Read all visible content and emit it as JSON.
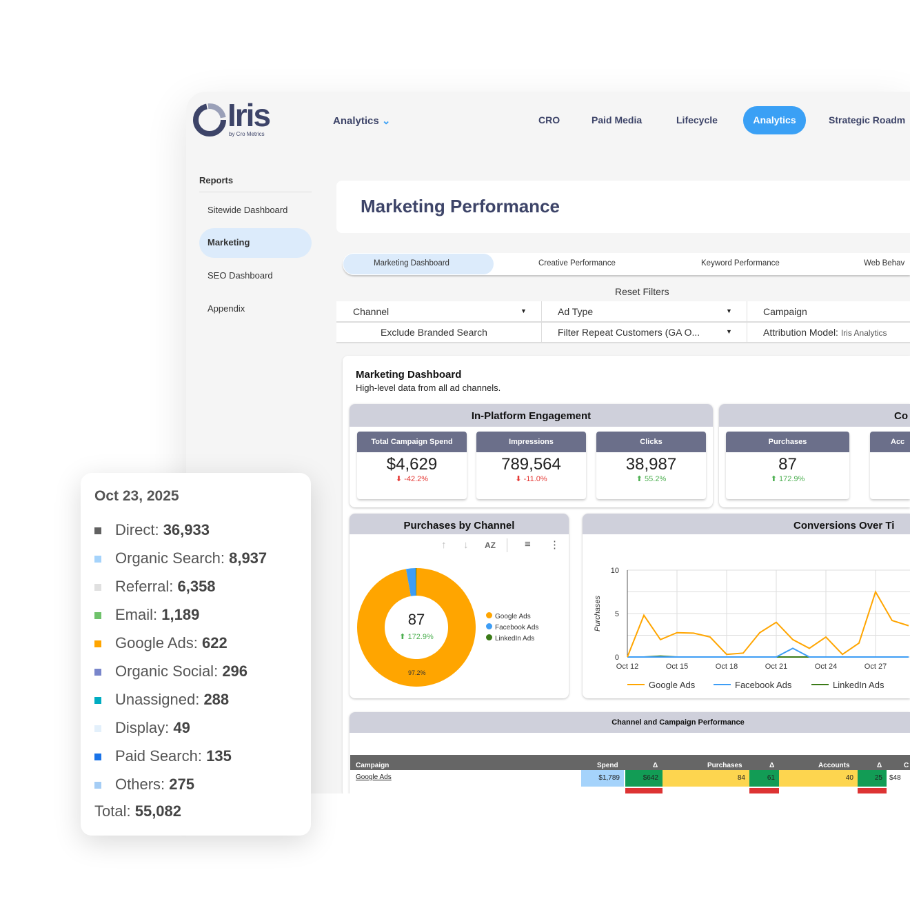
{
  "brand": {
    "logo_text": "Iris",
    "logo_sub": "by Cro Metrics"
  },
  "topnav": {
    "dropdown": "Analytics",
    "items": [
      "CRO",
      "Paid Media",
      "Lifecycle",
      "Analytics",
      "Strategic Roadm"
    ],
    "active": "Analytics"
  },
  "sidebar": {
    "heading": "Reports",
    "items": [
      "Sitewide Dashboard",
      "Marketing",
      "SEO Dashboard",
      "Appendix"
    ],
    "active": "Marketing"
  },
  "page_title": "Marketing Performance",
  "tabs": [
    "Marketing Dashboard",
    "Creative Performance",
    "Keyword Performance",
    "Web Behav"
  ],
  "filters": {
    "reset": "Reset Filters",
    "channel": "Channel",
    "ad_type": "Ad Type",
    "campaign": "Campaign",
    "exclude": "Exclude Branded Search",
    "repeat": "Filter Repeat Customers (GA O...",
    "attribution_label": "Attribution Model:",
    "attribution_value": "Iris Analytics"
  },
  "dashboard": {
    "title": "Marketing Dashboard",
    "subtitle": "High-level data from all ad channels."
  },
  "engagement": {
    "title": "In-Platform Engagement",
    "kpis": [
      {
        "label": "Total Campaign Spend",
        "value": "$4,629",
        "delta": "-42.2%",
        "dir": "down"
      },
      {
        "label": "Impressions",
        "value": "789,564",
        "delta": "-11.0%",
        "dir": "down"
      },
      {
        "label": "Clicks",
        "value": "38,987",
        "delta": "55.2%",
        "dir": "up"
      }
    ]
  },
  "conversions": {
    "title": "Co",
    "kpis": [
      {
        "label": "Purchases",
        "value": "87",
        "delta": "172.9%",
        "dir": "up"
      },
      {
        "label": "Acc"
      }
    ]
  },
  "pie": {
    "title": "Purchases by Channel",
    "center_value": "87",
    "center_delta": "172.9%",
    "slice_label": "97.2%"
  },
  "line_title": "Conversions Over Ti",
  "table": {
    "title": "Channel and Campaign Performance",
    "headers": [
      "Campaign",
      "Spend",
      "Δ",
      "Purchases",
      "Δ",
      "Accounts",
      "Δ",
      "C"
    ],
    "row": [
      "Google Ads",
      "$1,789",
      "$642",
      "84",
      "61",
      "40",
      "25",
      "$48"
    ]
  },
  "tooltip": {
    "date": "Oct 23, 2025",
    "items": [
      {
        "label": "Direct:",
        "value": "36,933",
        "color": "#616161"
      },
      {
        "label": "Organic Search:",
        "value": "8,937",
        "color": "#a5d3fb"
      },
      {
        "label": "Referral:",
        "value": "6,358",
        "color": "#e0e0e0"
      },
      {
        "label": "Email:",
        "value": "1,189",
        "color": "#6fc26b"
      },
      {
        "label": "Google Ads:",
        "value": "622",
        "color": "#ffa500"
      },
      {
        "label": "Organic Social:",
        "value": "296",
        "color": "#7986cb"
      },
      {
        "label": "Unassigned:",
        "value": "288",
        "color": "#00acc1"
      },
      {
        "label": "Display:",
        "value": "49",
        "color": "#e3f0fb"
      },
      {
        "label": "Paid Search:",
        "value": "135",
        "color": "#1a73e8"
      },
      {
        "label": "Others:",
        "value": "275",
        "color": "#a5cdf5"
      }
    ],
    "total_label": "Total:",
    "total_value": "55,082"
  },
  "chart_data": [
    {
      "type": "pie",
      "title": "Purchases by Channel",
      "categories": [
        "Google Ads",
        "Facebook Ads",
        "LinkedIn Ads"
      ],
      "values": [
        97.2,
        2.6,
        0.2
      ],
      "colors": [
        "#ffa500",
        "#3d9df5",
        "#3b7a17"
      ],
      "legend": "right"
    },
    {
      "type": "line",
      "title": "Conversions Over Ti",
      "ylabel": "Purchases",
      "ylim": [
        0,
        10
      ],
      "yticks": [
        0,
        5,
        10
      ],
      "grid": true,
      "legend": "bottom",
      "x": [
        "Oct 12",
        "Oct 13",
        "Oct 14",
        "Oct 15",
        "Oct 16",
        "Oct 17",
        "Oct 18",
        "Oct 19",
        "Oct 20",
        "Oct 21",
        "Oct 22",
        "Oct 23",
        "Oct 24",
        "Oct 25",
        "Oct 26",
        "Oct 27",
        "Oct 28",
        "Oct 29"
      ],
      "xticks": [
        "Oct 12",
        "Oct 15",
        "Oct 18",
        "Oct 21",
        "Oct 24",
        "Oct 27"
      ],
      "series": [
        {
          "name": "Google Ads",
          "color": "#ffa500",
          "values": [
            0,
            4.8,
            2.0,
            2.8,
            2.75,
            2.3,
            0.3,
            0.45,
            2.8,
            4.0,
            2.0,
            1.0,
            2.3,
            0.3,
            1.6,
            7.5,
            4.2,
            3.6
          ]
        },
        {
          "name": "Facebook Ads",
          "color": "#3d9df5",
          "values": [
            0,
            0,
            0,
            0,
            0,
            0,
            0,
            0,
            0,
            0,
            1,
            0,
            0,
            0,
            0,
            0,
            0,
            0
          ]
        },
        {
          "name": "LinkedIn Ads",
          "color": "#3b7a17",
          "values": [
            0,
            0,
            0.1,
            0,
            0,
            0,
            0,
            0,
            0,
            0,
            0,
            0,
            0,
            0,
            0,
            0,
            0,
            0
          ]
        }
      ]
    }
  ]
}
